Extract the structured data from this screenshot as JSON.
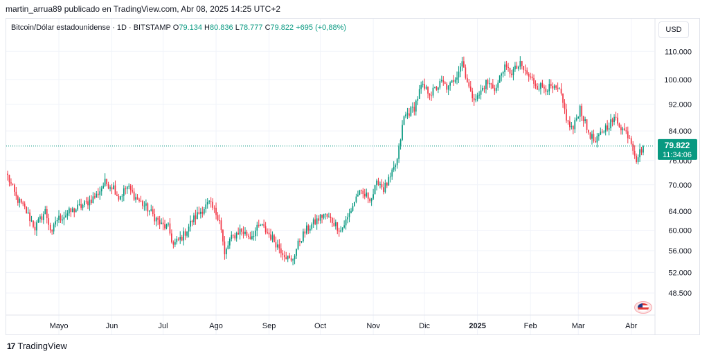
{
  "header": {
    "publisher_line": "martin_arrua89 publicado en TradingView.com, Abr 08, 2025 14:25 UTC+2"
  },
  "legend": {
    "symbol": "Bitcoin/Dólar estadounidense · 1D · BITSTAMP",
    "o_label": "O",
    "o_value": "79.134",
    "h_label": "H",
    "h_value": "80.836",
    "l_label": "L",
    "l_value": "78.777",
    "c_label": "C",
    "c_value": "79.822",
    "change": "+695 (+0,88%)"
  },
  "currency_button": "USD",
  "price_tag": {
    "price": "79.822",
    "countdown": "11:34:06"
  },
  "brand": {
    "name": "TradingView",
    "logo_text": "17"
  },
  "colors": {
    "up": "#089981",
    "down": "#f23645",
    "grid": "#f0f3fa",
    "axis_text": "#131722",
    "tag_bg": "#089981"
  },
  "chart_data": {
    "type": "candlestick",
    "title": "Bitcoin/Dólar estadounidense · 1D · BITSTAMP",
    "y_scale": "log",
    "ylim": [
      45000,
      117000
    ],
    "y_ticks": [
      48500,
      52000,
      56000,
      60000,
      64000,
      70000,
      76000,
      84000,
      92000,
      100000,
      110000
    ],
    "y_tick_labels": [
      "48.500",
      "52.000",
      "56.000",
      "60.000",
      "64.000",
      "70.000",
      "76.000",
      "84.000",
      "92.000",
      "100.000",
      "110.000"
    ],
    "x_tick_labels": [
      "Mayo",
      "Jun",
      "Jul",
      "Ago",
      "Sep",
      "Oct",
      "Nov",
      "Dic",
      "2025",
      "Feb",
      "Mar",
      "Abr"
    ],
    "x_tick_days": [
      30,
      61,
      91,
      122,
      153,
      183,
      214,
      244,
      275,
      306,
      334,
      365
    ],
    "last_price": 79822,
    "days_total": 373,
    "anchors": [
      [
        0,
        72000
      ],
      [
        5,
        67000
      ],
      [
        10,
        64500
      ],
      [
        16,
        60500
      ],
      [
        22,
        64000
      ],
      [
        26,
        59000
      ],
      [
        28,
        62000
      ],
      [
        35,
        63500
      ],
      [
        45,
        65500
      ],
      [
        52,
        67500
      ],
      [
        57,
        70500
      ],
      [
        62,
        69500
      ],
      [
        65,
        67000
      ],
      [
        70,
        69500
      ],
      [
        75,
        67000
      ],
      [
        82,
        64500
      ],
      [
        90,
        61000
      ],
      [
        94,
        60500
      ],
      [
        97,
        57000
      ],
      [
        103,
        59000
      ],
      [
        108,
        62000
      ],
      [
        115,
        64800
      ],
      [
        118,
        65600
      ],
      [
        124,
        62500
      ],
      [
        127,
        55000
      ],
      [
        130,
        58000
      ],
      [
        136,
        60000
      ],
      [
        142,
        58700
      ],
      [
        148,
        61000
      ],
      [
        153,
        59200
      ],
      [
        158,
        57000
      ],
      [
        163,
        55000
      ],
      [
        166,
        53800
      ],
      [
        171,
        58000
      ],
      [
        175,
        60100
      ],
      [
        185,
        63300
      ],
      [
        190,
        61900
      ],
      [
        195,
        60000
      ],
      [
        199,
        62500
      ],
      [
        205,
        68000
      ],
      [
        213,
        67000
      ],
      [
        217,
        71000
      ],
      [
        220,
        69000
      ],
      [
        224,
        71500
      ],
      [
        228,
        76000
      ],
      [
        232,
        88000
      ],
      [
        238,
        91000
      ],
      [
        242,
        97500
      ],
      [
        248,
        95500
      ],
      [
        254,
        99000
      ],
      [
        258,
        97000
      ],
      [
        263,
        102000
      ],
      [
        266,
        106500
      ],
      [
        271,
        95000
      ],
      [
        275,
        94000
      ],
      [
        280,
        99000
      ],
      [
        286,
        97000
      ],
      [
        290,
        104000
      ],
      [
        295,
        102500
      ],
      [
        300,
        105000
      ],
      [
        305,
        101000
      ],
      [
        310,
        98000
      ],
      [
        318,
        97000
      ],
      [
        323,
        96000
      ],
      [
        328,
        86000
      ],
      [
        331,
        84500
      ],
      [
        335,
        91000
      ],
      [
        339,
        84500
      ],
      [
        344,
        80500
      ],
      [
        348,
        84000
      ],
      [
        353,
        86500
      ],
      [
        356,
        87500
      ],
      [
        360,
        84500
      ],
      [
        364,
        82500
      ],
      [
        368,
        76500
      ],
      [
        372,
        79822
      ]
    ]
  }
}
